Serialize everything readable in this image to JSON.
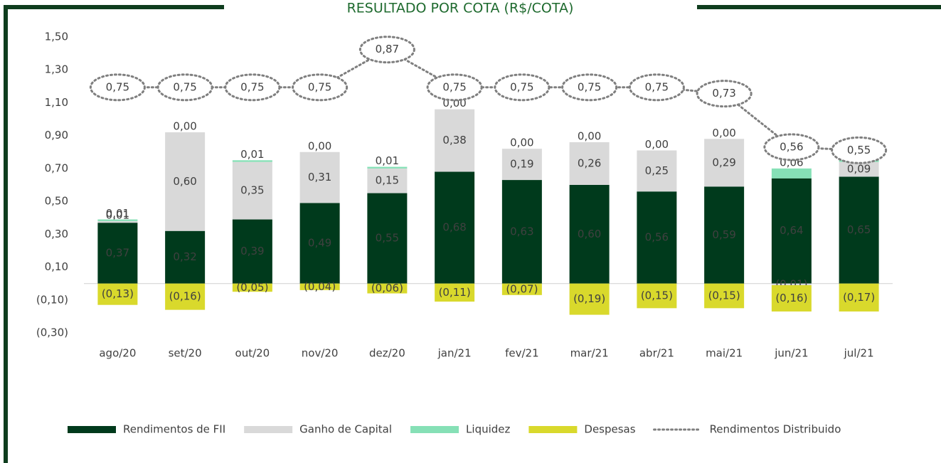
{
  "chart_data": {
    "type": "bar",
    "title": "RESULTADO POR COTA (R$/COTA)",
    "categories": [
      "ago/20",
      "set/20",
      "out/20",
      "nov/20",
      "dez/20",
      "jan/21",
      "fev/21",
      "mar/21",
      "abr/21",
      "mai/21",
      "jun/21",
      "jul/21"
    ],
    "series": [
      {
        "name": "Rendimentos de FII",
        "color": "#003a1c",
        "values": [
          0.37,
          0.32,
          0.39,
          0.49,
          0.55,
          0.68,
          0.63,
          0.6,
          0.56,
          0.59,
          0.64,
          0.65
        ],
        "value_labels": [
          "0,37",
          "0,32",
          "0,39",
          "0,49",
          "0,55",
          "0,68",
          "0,63",
          "0,60",
          "0,56",
          "0,59",
          "0,64",
          "0,65"
        ]
      },
      {
        "name": "Ganho de Capital",
        "color": "#d9d9d9",
        "values": [
          0.01,
          0.6,
          0.35,
          0.31,
          0.15,
          0.38,
          0.19,
          0.26,
          0.25,
          0.29,
          -0.01,
          0.09
        ],
        "value_labels": [
          "0,01",
          "0,60",
          "0,35",
          "0,31",
          "0,15",
          "0,38",
          "0,19",
          "0,26",
          "0,25",
          "0,29",
          "(0,01)",
          "0,09"
        ]
      },
      {
        "name": "Liquidez",
        "color": "#86e0b6",
        "values": [
          0.01,
          0.0,
          0.01,
          0.0,
          0.01,
          0.0,
          0.0,
          0.0,
          0.0,
          0.0,
          0.06,
          0.06
        ],
        "value_labels": [
          "0,01",
          "0,00",
          "0,01",
          "0,00",
          "0,01",
          "0,00",
          "0,00",
          "0,00",
          "0,00",
          "0,00",
          "0,06",
          "0,06"
        ]
      },
      {
        "name": "Despesas",
        "color": "#d9d92c",
        "values": [
          -0.13,
          -0.16,
          -0.05,
          -0.04,
          -0.06,
          -0.11,
          -0.07,
          -0.19,
          -0.15,
          -0.15,
          -0.16,
          -0.17
        ],
        "value_labels": [
          "(0,13)",
          "(0,16)",
          "(0,05)",
          "(0,04)",
          "(0,06)",
          "(0,11)",
          "(0,07)",
          "(0,19)",
          "(0,15)",
          "(0,15)",
          "(0,16)",
          "(0,17)"
        ]
      },
      {
        "name": "Rendimentos Distribuido",
        "color": "#7f7f7f",
        "type": "line",
        "axis": "y2",
        "values": [
          0.75,
          0.75,
          0.75,
          0.75,
          0.87,
          0.75,
          0.75,
          0.75,
          0.75,
          0.73,
          0.56,
          0.55
        ],
        "value_labels": [
          "0,75",
          "0,75",
          "0,75",
          "0,75",
          "0,87",
          "0,75",
          "0,75",
          "0,75",
          "0,75",
          "0,73",
          "0,56",
          "0,55"
        ]
      }
    ],
    "ylim": [
      -0.3,
      1.5
    ],
    "yticks": [
      {
        "value": -0.3,
        "label": "(0,30)"
      },
      {
        "value": -0.1,
        "label": "(0,10)"
      },
      {
        "value": 0.1,
        "label": "0,10"
      },
      {
        "value": 0.3,
        "label": "0,30"
      },
      {
        "value": 0.5,
        "label": "0,50"
      },
      {
        "value": 0.7,
        "label": "0,70"
      },
      {
        "value": 0.9,
        "label": "0,90"
      },
      {
        "value": 1.1,
        "label": "1,10"
      },
      {
        "value": 1.3,
        "label": "1,30"
      },
      {
        "value": 1.5,
        "label": "1,50"
      }
    ],
    "y2lim": [
      -0.03,
      0.91
    ],
    "grid": false,
    "legend": "bottom"
  }
}
